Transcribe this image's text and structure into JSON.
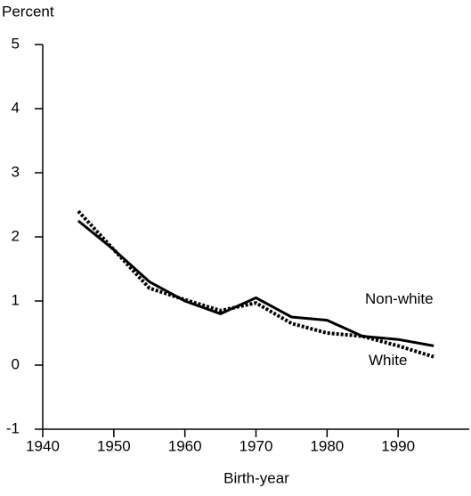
{
  "chart_data": {
    "type": "line",
    "y_label": "Percent",
    "x_label": "Birth-year",
    "x": [
      1945,
      1950,
      1955,
      1960,
      1965,
      1970,
      1975,
      1980,
      1985,
      1990,
      1995
    ],
    "series": [
      {
        "name": "Non-white",
        "color": "#000000",
        "dash": "solid",
        "values": [
          2.25,
          1.8,
          1.3,
          1.0,
          0.8,
          1.05,
          0.75,
          0.7,
          0.45,
          0.4,
          0.3
        ]
      },
      {
        "name": "White",
        "color": "#000000",
        "dash": "dotted",
        "values": [
          2.4,
          1.8,
          1.2,
          1.02,
          0.85,
          0.97,
          0.65,
          0.5,
          0.45,
          0.3,
          0.13
        ]
      }
    ],
    "xlim": [
      1940,
      2000
    ],
    "xticks": [
      1940,
      1950,
      1960,
      1970,
      1980,
      1990
    ],
    "ylim": [
      -1,
      5
    ],
    "yticks": [
      -1,
      0,
      1,
      2,
      3,
      4,
      5
    ]
  }
}
